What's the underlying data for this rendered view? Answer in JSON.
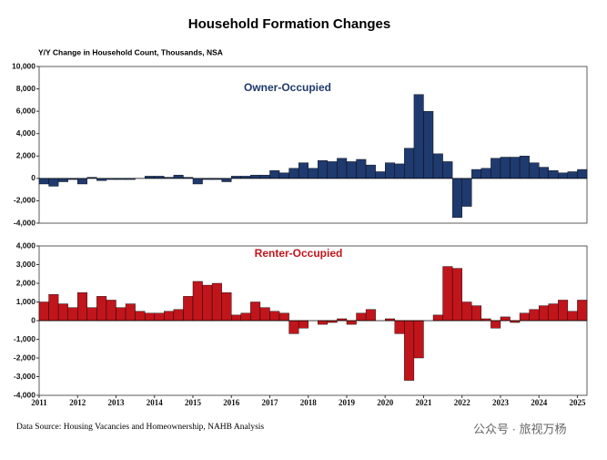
{
  "title": "Household Formation Changes",
  "subtitle": "Y/Y Change in Household Count, Thousands, NSA",
  "source": "Data Source: Housing Vacancies and Homeownership, NAHB Analysis",
  "watermark": "公众号 · 旅视万杨",
  "chart_data": [
    {
      "type": "bar",
      "title": "Owner-Occupied",
      "color": "#1f3a6e",
      "title_color": "#1f3a6e",
      "values": [
        -500,
        -700,
        -300,
        -100,
        -500,
        100,
        -200,
        -100,
        -100,
        -100,
        0,
        200,
        200,
        100,
        300,
        100,
        -500,
        -100,
        -100,
        -300,
        200,
        200,
        300,
        300,
        700,
        500,
        900,
        1400,
        900,
        1600,
        1500,
        1800,
        1500,
        1700,
        1200,
        600,
        1400,
        1300,
        2700,
        7500,
        6000,
        2200,
        1500,
        -3500,
        -2500,
        800,
        900,
        1800,
        1900,
        1900,
        2000,
        1400,
        1000,
        700,
        500,
        600,
        800
      ],
      "ylim": [
        -4000,
        10000
      ],
      "yticks": [
        {
          "value": -4000,
          "label": "-4,000"
        },
        {
          "value": -2000,
          "label": "-2,000"
        },
        0,
        {
          "value": 2000,
          "label": "2,000"
        },
        {
          "value": 4000,
          "label": "4,000"
        },
        {
          "value": 6000,
          "label": "6,000"
        },
        {
          "value": 8000,
          "label": "8,000"
        },
        {
          "value": 10000,
          "label": "10,000"
        }
      ]
    },
    {
      "type": "bar",
      "title": "Renter-Occupied",
      "color": "#c0151b",
      "title_color": "#c0151b",
      "categories": [
        "2011",
        null,
        null,
        null,
        "2012",
        null,
        null,
        null,
        "2013",
        null,
        null,
        null,
        "2014",
        null,
        null,
        null,
        "2015",
        null,
        null,
        null,
        "2016",
        null,
        null,
        null,
        "2017",
        null,
        null,
        null,
        "2018",
        null,
        null,
        null,
        "2019",
        null,
        null,
        null,
        "2020",
        null,
        null,
        null,
        "2021",
        null,
        null,
        null,
        "2022",
        null,
        null,
        null,
        "2023",
        null,
        null,
        null,
        "2024",
        null,
        null,
        null,
        "2025"
      ],
      "values": [
        1000,
        1400,
        900,
        700,
        1500,
        700,
        1300,
        1100,
        700,
        900,
        500,
        400,
        400,
        500,
        600,
        1300,
        2100,
        1900,
        2000,
        1500,
        300,
        400,
        1000,
        700,
        500,
        400,
        -700,
        -400,
        0,
        -200,
        -100,
        100,
        -200,
        400,
        600,
        0,
        100,
        -700,
        -3200,
        -2000,
        0,
        300,
        2900,
        2800,
        1000,
        800,
        100,
        -400,
        200,
        -100,
        400,
        600,
        800,
        900,
        1100,
        500,
        1100
      ],
      "ylim": [
        -4000,
        4000
      ],
      "yticks": [
        {
          "value": -4000,
          "label": "-4,000"
        },
        {
          "value": -3000,
          "label": "-3,000"
        },
        {
          "value": -2000,
          "label": "-2,000"
        },
        {
          "value": -1000,
          "label": "-1,000"
        },
        0,
        {
          "value": 1000,
          "label": "1,000"
        },
        {
          "value": 2000,
          "label": "2,000"
        },
        {
          "value": 3000,
          "label": "3,000"
        },
        {
          "value": 4000,
          "label": "4,000"
        }
      ]
    }
  ]
}
